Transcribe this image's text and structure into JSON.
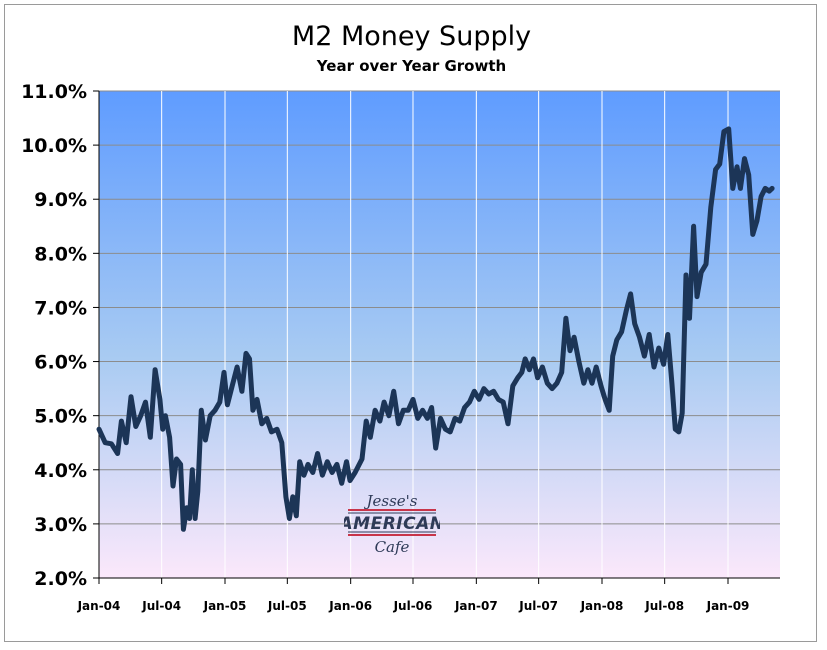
{
  "chart_data": {
    "type": "line",
    "title": "M2 Money Supply",
    "subtitle": "Year over Year Growth",
    "xlabel": "",
    "ylabel": "",
    "x_tick_labels": [
      "Jan-04",
      "Jul-04",
      "Jan-05",
      "Jul-05",
      "Jan-06",
      "Jul-06",
      "Jan-07",
      "Jul-07",
      "Jan-08",
      "Jul-08",
      "Jan-09"
    ],
    "y_tick_labels": [
      "2.0%",
      "3.0%",
      "4.0%",
      "5.0%",
      "6.0%",
      "7.0%",
      "8.0%",
      "9.0%",
      "10.0%",
      "11.0%"
    ],
    "ylim": [
      2.0,
      11.0
    ],
    "xlim": [
      "Jan-04",
      "Jun-09"
    ],
    "grid": "vertical",
    "legend": "none",
    "series": [
      {
        "color": "#1c3557",
        "points": [
          [
            "2004-01-01",
            4.75
          ],
          [
            "2004-01-19",
            4.5
          ],
          [
            "2004-02-06",
            4.48
          ],
          [
            "2004-02-24",
            4.3
          ],
          [
            "2004-03-06",
            4.9
          ],
          [
            "2004-03-20",
            4.5
          ],
          [
            "2004-04-03",
            5.35
          ],
          [
            "2004-04-17",
            4.8
          ],
          [
            "2004-05-01",
            5.0
          ],
          [
            "2004-05-15",
            5.25
          ],
          [
            "2004-05-29",
            4.6
          ],
          [
            "2004-06-12",
            5.85
          ],
          [
            "2004-06-26",
            5.3
          ],
          [
            "2004-07-04",
            4.75
          ],
          [
            "2004-07-12",
            5.0
          ],
          [
            "2004-07-24",
            4.6
          ],
          [
            "2004-08-03",
            3.7
          ],
          [
            "2004-08-13",
            4.2
          ],
          [
            "2004-08-25",
            4.1
          ],
          [
            "2004-09-02",
            2.9
          ],
          [
            "2004-09-12",
            3.3
          ],
          [
            "2004-09-20",
            3.1
          ],
          [
            "2004-09-28",
            4.0
          ],
          [
            "2004-10-06",
            3.1
          ],
          [
            "2004-10-14",
            3.6
          ],
          [
            "2004-10-24",
            5.1
          ],
          [
            "2004-11-05",
            4.55
          ],
          [
            "2004-11-19",
            5.0
          ],
          [
            "2004-12-03",
            5.1
          ],
          [
            "2004-12-17",
            5.25
          ],
          [
            "2004-12-29",
            5.8
          ],
          [
            "2005-01-08",
            5.2
          ],
          [
            "2005-01-22",
            5.55
          ],
          [
            "2005-02-05",
            5.9
          ],
          [
            "2005-02-19",
            5.45
          ],
          [
            "2005-03-03",
            6.15
          ],
          [
            "2005-03-13",
            6.05
          ],
          [
            "2005-03-23",
            5.1
          ],
          [
            "2005-04-04",
            5.3
          ],
          [
            "2005-04-18",
            4.85
          ],
          [
            "2005-05-02",
            4.95
          ],
          [
            "2005-05-16",
            4.7
          ],
          [
            "2005-06-01",
            4.75
          ],
          [
            "2005-06-15",
            4.5
          ],
          [
            "2005-06-27",
            3.5
          ],
          [
            "2005-07-07",
            3.1
          ],
          [
            "2005-07-17",
            3.5
          ],
          [
            "2005-07-27",
            3.15
          ],
          [
            "2005-08-06",
            4.15
          ],
          [
            "2005-08-18",
            3.9
          ],
          [
            "2005-08-30",
            4.1
          ],
          [
            "2005-09-13",
            3.95
          ],
          [
            "2005-09-27",
            4.3
          ],
          [
            "2005-10-11",
            3.9
          ],
          [
            "2005-10-25",
            4.15
          ],
          [
            "2005-11-08",
            3.95
          ],
          [
            "2005-11-22",
            4.1
          ],
          [
            "2005-12-06",
            3.75
          ],
          [
            "2005-12-20",
            4.15
          ],
          [
            "2005-12-30",
            3.8
          ],
          [
            "2006-01-14",
            3.95
          ],
          [
            "2006-02-03",
            4.2
          ],
          [
            "2006-02-15",
            4.9
          ],
          [
            "2006-02-27",
            4.6
          ],
          [
            "2006-03-13",
            5.1
          ],
          [
            "2006-03-27",
            4.9
          ],
          [
            "2006-04-08",
            5.25
          ],
          [
            "2006-04-22",
            5.0
          ],
          [
            "2006-05-06",
            5.45
          ],
          [
            "2006-05-20",
            4.85
          ],
          [
            "2006-06-03",
            5.1
          ],
          [
            "2006-06-17",
            5.1
          ],
          [
            "2006-07-01",
            5.3
          ],
          [
            "2006-07-15",
            4.95
          ],
          [
            "2006-07-29",
            5.1
          ],
          [
            "2006-08-12",
            4.95
          ],
          [
            "2006-08-24",
            5.15
          ],
          [
            "2006-09-05",
            4.4
          ],
          [
            "2006-09-19",
            4.95
          ],
          [
            "2006-10-03",
            4.75
          ],
          [
            "2006-10-17",
            4.7
          ],
          [
            "2006-10-31",
            4.95
          ],
          [
            "2006-11-14",
            4.9
          ],
          [
            "2006-11-28",
            5.15
          ],
          [
            "2006-12-12",
            5.25
          ],
          [
            "2006-12-26",
            5.45
          ],
          [
            "2007-01-09",
            5.3
          ],
          [
            "2007-01-23",
            5.5
          ],
          [
            "2007-02-06",
            5.4
          ],
          [
            "2007-02-20",
            5.45
          ],
          [
            "2007-03-06",
            5.3
          ],
          [
            "2007-03-20",
            5.25
          ],
          [
            "2007-04-03",
            4.85
          ],
          [
            "2007-04-17",
            5.55
          ],
          [
            "2007-05-01",
            5.7
          ],
          [
            "2007-05-13",
            5.8
          ],
          [
            "2007-05-23",
            6.05
          ],
          [
            "2007-06-04",
            5.85
          ],
          [
            "2007-06-16",
            6.05
          ],
          [
            "2007-06-28",
            5.7
          ],
          [
            "2007-07-12",
            5.9
          ],
          [
            "2007-07-26",
            5.6
          ],
          [
            "2007-08-09",
            5.5
          ],
          [
            "2007-08-23",
            5.6
          ],
          [
            "2007-09-06",
            5.8
          ],
          [
            "2007-09-18",
            6.8
          ],
          [
            "2007-09-30",
            6.2
          ],
          [
            "2007-10-12",
            6.45
          ],
          [
            "2007-10-26",
            6.0
          ],
          [
            "2007-11-09",
            5.6
          ],
          [
            "2007-11-21",
            5.85
          ],
          [
            "2007-12-03",
            5.6
          ],
          [
            "2007-12-15",
            5.9
          ],
          [
            "2007-12-29",
            5.55
          ],
          [
            "2008-01-10",
            5.3
          ],
          [
            "2008-01-22",
            5.1
          ],
          [
            "2008-02-01",
            6.1
          ],
          [
            "2008-02-13",
            6.4
          ],
          [
            "2008-02-27",
            6.55
          ],
          [
            "2008-03-12",
            6.95
          ],
          [
            "2008-03-24",
            7.25
          ],
          [
            "2008-04-05",
            6.7
          ],
          [
            "2008-04-19",
            6.45
          ],
          [
            "2008-05-03",
            6.1
          ],
          [
            "2008-05-17",
            6.5
          ],
          [
            "2008-05-31",
            5.9
          ],
          [
            "2008-06-14",
            6.25
          ],
          [
            "2008-06-28",
            5.95
          ],
          [
            "2008-07-10",
            6.5
          ],
          [
            "2008-07-22",
            5.6
          ],
          [
            "2008-08-01",
            4.75
          ],
          [
            "2008-08-11",
            4.7
          ],
          [
            "2008-08-21",
            5.05
          ],
          [
            "2008-09-01",
            7.6
          ],
          [
            "2008-09-11",
            6.8
          ],
          [
            "2008-09-23",
            8.5
          ],
          [
            "2008-10-03",
            7.2
          ],
          [
            "2008-10-15",
            7.65
          ],
          [
            "2008-10-29",
            7.8
          ],
          [
            "2008-11-12",
            8.85
          ],
          [
            "2008-11-26",
            9.55
          ],
          [
            "2008-12-08",
            9.65
          ],
          [
            "2008-12-20",
            10.25
          ],
          [
            "2009-01-03",
            10.3
          ],
          [
            "2009-01-15",
            9.2
          ],
          [
            "2009-01-27",
            9.6
          ],
          [
            "2009-02-06",
            9.2
          ],
          [
            "2009-02-18",
            9.75
          ],
          [
            "2009-03-02",
            9.45
          ],
          [
            "2009-03-14",
            8.35
          ],
          [
            "2009-03-26",
            8.6
          ],
          [
            "2009-04-07",
            9.05
          ],
          [
            "2009-04-19",
            9.2
          ],
          [
            "2009-05-01",
            9.15
          ],
          [
            "2009-05-09",
            9.2
          ]
        ]
      }
    ]
  },
  "watermark": {
    "line1": "Jesse's",
    "line2": "AMERICAN",
    "line3": "Cafe"
  }
}
